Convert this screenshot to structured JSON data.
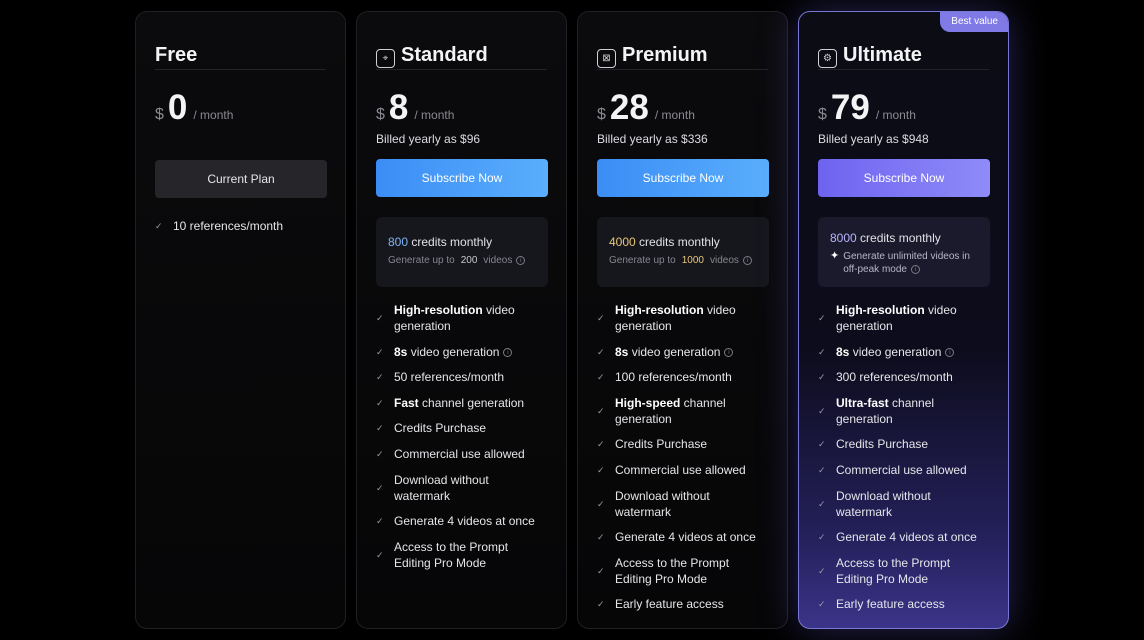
{
  "plans": [
    {
      "name": "Free",
      "currency": "$",
      "price": "0",
      "per": "/ month",
      "billed": "",
      "button": "Current Plan",
      "features": [
        "10 references/month"
      ]
    },
    {
      "name": "Standard",
      "icon": "target-icon",
      "currency": "$",
      "price": "8",
      "per": "/ month",
      "billed": "Billed yearly as $96",
      "button": "Subscribe Now",
      "credits_num": "800",
      "credits_text": "credits monthly",
      "gen_prefix": "Generate up to",
      "gen_num": "200",
      "gen_suffix": "videos",
      "features": [
        {
          "bold": "High-resolution",
          "text": " video generation"
        },
        {
          "bold": "8s",
          "text": " video generation",
          "info": true
        },
        {
          "bold": "",
          "text": "50 references/month"
        },
        {
          "bold": "Fast",
          "text": " channel generation"
        },
        {
          "bold": "",
          "text": "Credits Purchase"
        },
        {
          "bold": "",
          "text": "Commercial use allowed"
        },
        {
          "bold": "",
          "text": "Download without watermark"
        },
        {
          "bold": "",
          "text": "Generate 4 videos at once"
        },
        {
          "bold": "",
          "text": "Access to the Prompt Editing Pro Mode"
        }
      ]
    },
    {
      "name": "Premium",
      "icon": "grid-icon",
      "currency": "$",
      "price": "28",
      "per": "/ month",
      "billed": "Billed yearly as $336",
      "button": "Subscribe Now",
      "credits_num": "4000",
      "credits_text": "credits monthly",
      "gen_prefix": "Generate up to",
      "gen_num": "1000",
      "gen_suffix": "videos",
      "features": [
        {
          "bold": "High-resolution",
          "text": " video generation"
        },
        {
          "bold": "8s",
          "text": " video generation",
          "info": true
        },
        {
          "bold": "",
          "text": "100 references/month"
        },
        {
          "bold": "High-speed",
          "text": " channel generation"
        },
        {
          "bold": "",
          "text": "Credits Purchase"
        },
        {
          "bold": "",
          "text": "Commercial use allowed"
        },
        {
          "bold": "",
          "text": "Download without watermark"
        },
        {
          "bold": "",
          "text": "Generate 4 videos at once"
        },
        {
          "bold": "",
          "text": "Access to the Prompt Editing Pro Mode"
        },
        {
          "bold": "",
          "text": "Early feature access"
        }
      ]
    },
    {
      "name": "Ultimate",
      "icon": "gear-icon",
      "badge": "Best value",
      "currency": "$",
      "price": "79",
      "per": "/ month",
      "billed": "Billed yearly as $948",
      "button": "Subscribe Now",
      "credits_num": "8000",
      "credits_text": "credits monthly",
      "unlimited_text": "Generate unlimited videos in off-peak mode",
      "features": [
        {
          "bold": "High-resolution",
          "text": " video generation"
        },
        {
          "bold": "8s",
          "text": " video generation",
          "info": true
        },
        {
          "bold": "",
          "text": "300 references/month"
        },
        {
          "bold": "Ultra-fast",
          "text": " channel generation"
        },
        {
          "bold": "",
          "text": "Credits Purchase"
        },
        {
          "bold": "",
          "text": "Commercial use allowed"
        },
        {
          "bold": "",
          "text": "Download without watermark"
        },
        {
          "bold": "",
          "text": "Generate 4 videos at once"
        },
        {
          "bold": "",
          "text": "Access to the Prompt Editing Pro Mode"
        },
        {
          "bold": "",
          "text": "Early feature access"
        }
      ]
    }
  ],
  "colors": {
    "background": "#000000",
    "accent_blue": "#4a9ef8",
    "accent_violet": "#7f7ae6",
    "gold": "#e8c77a"
  }
}
